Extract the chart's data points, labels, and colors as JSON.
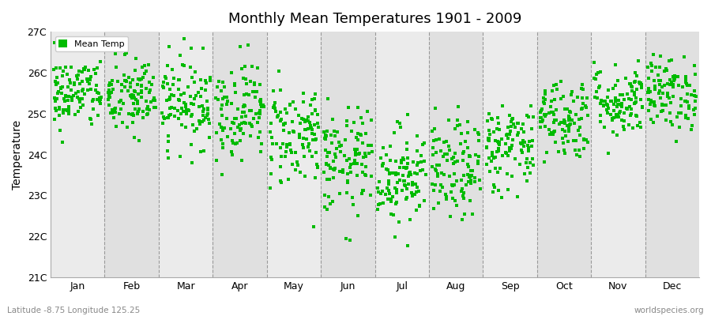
{
  "title": "Monthly Mean Temperatures 1901 - 2009",
  "ylabel": "Temperature",
  "xlabel_bottom": "Latitude -8.75 Longitude 125.25",
  "watermark": "worldspecies.org",
  "ylim": [
    21,
    27
  ],
  "yticks": [
    21,
    22,
    23,
    24,
    25,
    26,
    27
  ],
  "ytick_labels": [
    "21C",
    "22C",
    "23C",
    "24C",
    "25C",
    "26C",
    "27C"
  ],
  "months": [
    "Jan",
    "Feb",
    "Mar",
    "Apr",
    "May",
    "Jun",
    "Jul",
    "Aug",
    "Sep",
    "Oct",
    "Nov",
    "Dec"
  ],
  "marker_color": "#00bb00",
  "marker_size": 2.5,
  "background_color": "#f5f5f5",
  "band_colors": [
    "#ebebeb",
    "#e0e0e0"
  ],
  "legend_label": "Mean Temp",
  "seed": 42,
  "n_years": 109,
  "monthly_means": [
    25.5,
    25.4,
    25.3,
    25.1,
    24.5,
    23.8,
    23.5,
    23.6,
    24.2,
    24.9,
    25.3,
    25.5
  ],
  "monthly_stds": [
    0.45,
    0.5,
    0.55,
    0.6,
    0.65,
    0.65,
    0.6,
    0.6,
    0.55,
    0.5,
    0.45,
    0.45
  ]
}
